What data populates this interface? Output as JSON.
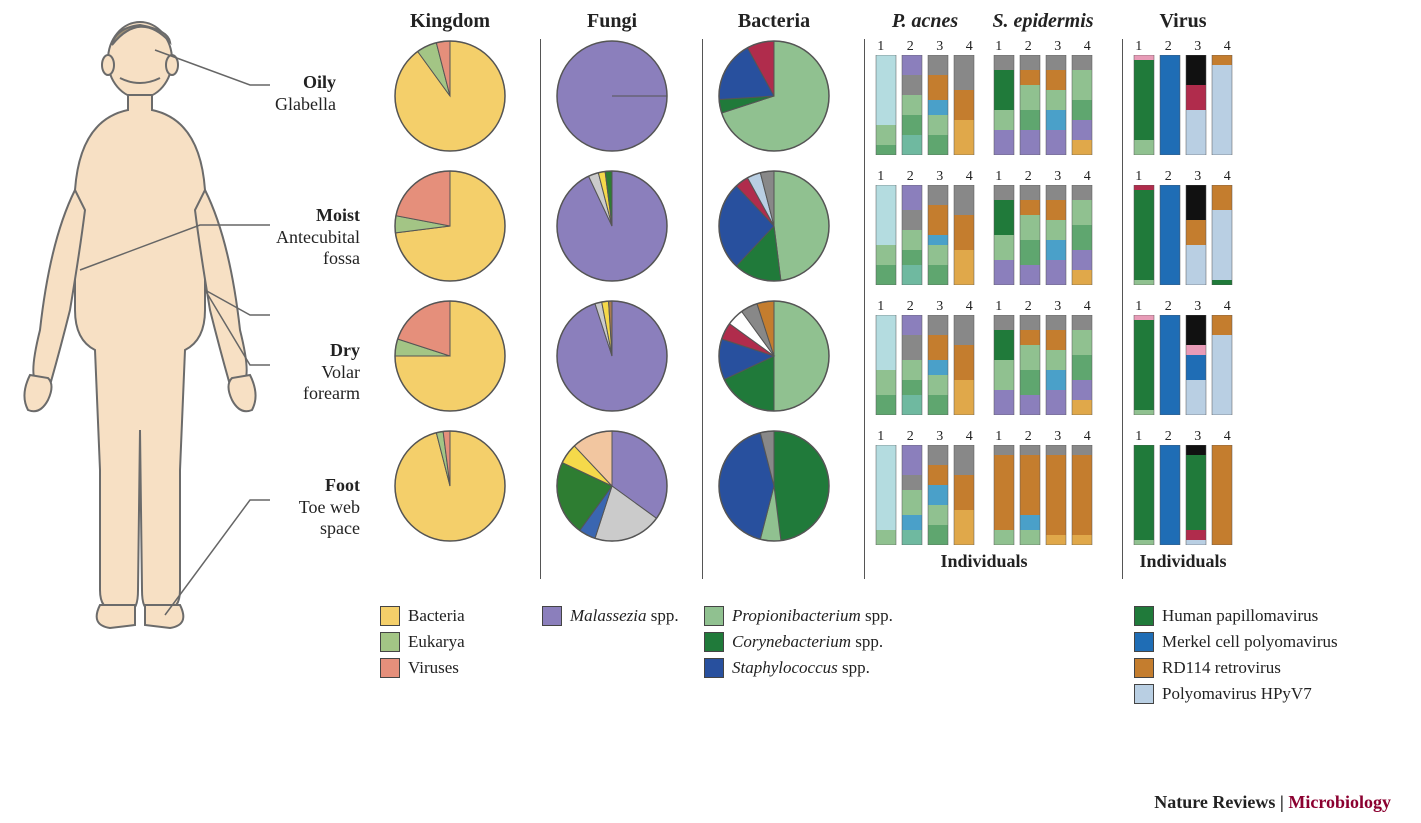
{
  "headers": {
    "kingdom": "Kingdom",
    "fungi": "Fungi",
    "bacteria": "Bacteria",
    "pacnes": "P. acnes",
    "sepi": "S. epidermis",
    "virus": "Virus"
  },
  "sites": [
    {
      "bold": "Oily",
      "sub": "Glabella"
    },
    {
      "bold": "Moist",
      "sub": "Antecubital fossa"
    },
    {
      "bold": "Dry",
      "sub": "Volar forearm"
    },
    {
      "bold": "Foot",
      "sub": "Toe web space"
    }
  ],
  "individuals_label": "Individuals",
  "credit_a": "Nature Reviews",
  "credit_sep": " | ",
  "credit_b": "Microbiology",
  "pies": {
    "kingdom": [
      {
        "slices": [
          {
            "v": 90,
            "c": "#f4cf6a"
          },
          {
            "v": 6,
            "c": "#a3c585"
          },
          {
            "v": 4,
            "c": "#e58f7b"
          }
        ]
      },
      {
        "slices": [
          {
            "v": 73,
            "c": "#f4cf6a"
          },
          {
            "v": 5,
            "c": "#a3c585"
          },
          {
            "v": 22,
            "c": "#e58f7b"
          }
        ]
      },
      {
        "slices": [
          {
            "v": 75,
            "c": "#f4cf6a"
          },
          {
            "v": 5,
            "c": "#a3c585"
          },
          {
            "v": 20,
            "c": "#e58f7b"
          }
        ]
      },
      {
        "slices": [
          {
            "v": 96,
            "c": "#f4cf6a"
          },
          {
            "v": 2,
            "c": "#a3c585"
          },
          {
            "v": 2,
            "c": "#e58f7b"
          }
        ]
      }
    ],
    "fungi": [
      {
        "slices": [
          {
            "v": 100,
            "c": "#8b7fbc"
          }
        ]
      },
      {
        "slices": [
          {
            "v": 93,
            "c": "#8b7fbc"
          },
          {
            "v": 3,
            "c": "#cbcbcb"
          },
          {
            "v": 2,
            "c": "#f5d94a"
          },
          {
            "v": 2,
            "c": "#2e7d32"
          }
        ]
      },
      {
        "slices": [
          {
            "v": 95,
            "c": "#8b7fbc"
          },
          {
            "v": 2,
            "c": "#cbcbcb"
          },
          {
            "v": 2,
            "c": "#f5d94a"
          },
          {
            "v": 1,
            "c": "#a97c50"
          }
        ]
      },
      {
        "slices": [
          {
            "v": 35,
            "c": "#8b7fbc"
          },
          {
            "v": 20,
            "c": "#cbcbcb"
          },
          {
            "v": 5,
            "c": "#3a66b1"
          },
          {
            "v": 22,
            "c": "#2e7d32"
          },
          {
            "v": 6,
            "c": "#f5d94a"
          },
          {
            "v": 12,
            "c": "#f2c6a0"
          }
        ]
      }
    ],
    "bacteria": [
      {
        "slices": [
          {
            "v": 70,
            "c": "#90c190"
          },
          {
            "v": 4,
            "c": "#207a3a"
          },
          {
            "v": 18,
            "c": "#28509e"
          },
          {
            "v": 8,
            "c": "#b02c4c"
          }
        ]
      },
      {
        "slices": [
          {
            "v": 48,
            "c": "#90c190"
          },
          {
            "v": 14,
            "c": "#207a3a"
          },
          {
            "v": 26,
            "c": "#28509e"
          },
          {
            "v": 4,
            "c": "#b02c4c"
          },
          {
            "v": 4,
            "c": "#b9cfe3"
          },
          {
            "v": 4,
            "c": "#888888"
          }
        ]
      },
      {
        "slices": [
          {
            "v": 50,
            "c": "#90c190"
          },
          {
            "v": 18,
            "c": "#207a3a"
          },
          {
            "v": 12,
            "c": "#28509e"
          },
          {
            "v": 5,
            "c": "#b02c4c"
          },
          {
            "v": 5,
            "c": "#ffffff"
          },
          {
            "v": 5,
            "c": "#888888"
          },
          {
            "v": 5,
            "c": "#c47d2e"
          }
        ]
      },
      {
        "slices": [
          {
            "v": 48,
            "c": "#207a3a"
          },
          {
            "v": 6,
            "c": "#90c190"
          },
          {
            "v": 42,
            "c": "#28509e"
          },
          {
            "v": 4,
            "c": "#888888"
          }
        ]
      }
    ]
  },
  "bars": {
    "pacnes": [
      [
        [
          {
            "v": 70,
            "c": "#b4dce0"
          },
          {
            "v": 20,
            "c": "#90c190"
          },
          {
            "v": 10,
            "c": "#5fa66f"
          }
        ],
        [
          {
            "v": 20,
            "c": "#8b7fbc"
          },
          {
            "v": 20,
            "c": "#888888"
          },
          {
            "v": 20,
            "c": "#90c190"
          },
          {
            "v": 20,
            "c": "#5fa66f"
          },
          {
            "v": 20,
            "c": "#6fb9a0"
          }
        ],
        [
          {
            "v": 20,
            "c": "#888888"
          },
          {
            "v": 25,
            "c": "#c47d2e"
          },
          {
            "v": 15,
            "c": "#4aa0c9"
          },
          {
            "v": 20,
            "c": "#90c190"
          },
          {
            "v": 20,
            "c": "#5fa66f"
          }
        ],
        [
          {
            "v": 35,
            "c": "#888888"
          },
          {
            "v": 30,
            "c": "#c47d2e"
          },
          {
            "v": 35,
            "c": "#e0a84a"
          }
        ]
      ],
      [
        [
          {
            "v": 60,
            "c": "#b4dce0"
          },
          {
            "v": 20,
            "c": "#90c190"
          },
          {
            "v": 20,
            "c": "#5fa66f"
          }
        ],
        [
          {
            "v": 25,
            "c": "#8b7fbc"
          },
          {
            "v": 20,
            "c": "#888888"
          },
          {
            "v": 20,
            "c": "#90c190"
          },
          {
            "v": 15,
            "c": "#5fa66f"
          },
          {
            "v": 20,
            "c": "#6fb9a0"
          }
        ],
        [
          {
            "v": 20,
            "c": "#888888"
          },
          {
            "v": 30,
            "c": "#c47d2e"
          },
          {
            "v": 10,
            "c": "#4aa0c9"
          },
          {
            "v": 20,
            "c": "#90c190"
          },
          {
            "v": 20,
            "c": "#5fa66f"
          }
        ],
        [
          {
            "v": 30,
            "c": "#888888"
          },
          {
            "v": 35,
            "c": "#c47d2e"
          },
          {
            "v": 35,
            "c": "#e0a84a"
          }
        ]
      ],
      [
        [
          {
            "v": 55,
            "c": "#b4dce0"
          },
          {
            "v": 25,
            "c": "#90c190"
          },
          {
            "v": 20,
            "c": "#5fa66f"
          }
        ],
        [
          {
            "v": 20,
            "c": "#8b7fbc"
          },
          {
            "v": 25,
            "c": "#888888"
          },
          {
            "v": 20,
            "c": "#90c190"
          },
          {
            "v": 15,
            "c": "#5fa66f"
          },
          {
            "v": 20,
            "c": "#6fb9a0"
          }
        ],
        [
          {
            "v": 20,
            "c": "#888888"
          },
          {
            "v": 25,
            "c": "#c47d2e"
          },
          {
            "v": 15,
            "c": "#4aa0c9"
          },
          {
            "v": 20,
            "c": "#90c190"
          },
          {
            "v": 20,
            "c": "#5fa66f"
          }
        ],
        [
          {
            "v": 30,
            "c": "#888888"
          },
          {
            "v": 35,
            "c": "#c47d2e"
          },
          {
            "v": 35,
            "c": "#e0a84a"
          }
        ]
      ],
      [
        [
          {
            "v": 85,
            "c": "#b4dce0"
          },
          {
            "v": 15,
            "c": "#90c190"
          }
        ],
        [
          {
            "v": 30,
            "c": "#8b7fbc"
          },
          {
            "v": 15,
            "c": "#888888"
          },
          {
            "v": 25,
            "c": "#90c190"
          },
          {
            "v": 15,
            "c": "#4aa0c9"
          },
          {
            "v": 15,
            "c": "#6fb9a0"
          }
        ],
        [
          {
            "v": 20,
            "c": "#888888"
          },
          {
            "v": 20,
            "c": "#c47d2e"
          },
          {
            "v": 20,
            "c": "#4aa0c9"
          },
          {
            "v": 20,
            "c": "#90c190"
          },
          {
            "v": 20,
            "c": "#5fa66f"
          }
        ],
        [
          {
            "v": 30,
            "c": "#888888"
          },
          {
            "v": 35,
            "c": "#c47d2e"
          },
          {
            "v": 35,
            "c": "#e0a84a"
          }
        ]
      ]
    ],
    "sepi": [
      [
        [
          {
            "v": 15,
            "c": "#888888"
          },
          {
            "v": 40,
            "c": "#207a3a"
          },
          {
            "v": 20,
            "c": "#90c190"
          },
          {
            "v": 25,
            "c": "#8b7fbc"
          }
        ],
        [
          {
            "v": 15,
            "c": "#888888"
          },
          {
            "v": 15,
            "c": "#c47d2e"
          },
          {
            "v": 25,
            "c": "#90c190"
          },
          {
            "v": 20,
            "c": "#5fa66f"
          },
          {
            "v": 25,
            "c": "#8b7fbc"
          }
        ],
        [
          {
            "v": 15,
            "c": "#888888"
          },
          {
            "v": 20,
            "c": "#c47d2e"
          },
          {
            "v": 20,
            "c": "#90c190"
          },
          {
            "v": 20,
            "c": "#4aa0c9"
          },
          {
            "v": 25,
            "c": "#8b7fbc"
          }
        ],
        [
          {
            "v": 15,
            "c": "#888888"
          },
          {
            "v": 30,
            "c": "#90c190"
          },
          {
            "v": 20,
            "c": "#5fa66f"
          },
          {
            "v": 20,
            "c": "#8b7fbc"
          },
          {
            "v": 15,
            "c": "#e0a84a"
          }
        ]
      ],
      [
        [
          {
            "v": 15,
            "c": "#888888"
          },
          {
            "v": 35,
            "c": "#207a3a"
          },
          {
            "v": 25,
            "c": "#90c190"
          },
          {
            "v": 25,
            "c": "#8b7fbc"
          }
        ],
        [
          {
            "v": 15,
            "c": "#888888"
          },
          {
            "v": 15,
            "c": "#c47d2e"
          },
          {
            "v": 25,
            "c": "#90c190"
          },
          {
            "v": 25,
            "c": "#5fa66f"
          },
          {
            "v": 20,
            "c": "#8b7fbc"
          }
        ],
        [
          {
            "v": 15,
            "c": "#888888"
          },
          {
            "v": 20,
            "c": "#c47d2e"
          },
          {
            "v": 20,
            "c": "#90c190"
          },
          {
            "v": 20,
            "c": "#4aa0c9"
          },
          {
            "v": 25,
            "c": "#8b7fbc"
          }
        ],
        [
          {
            "v": 15,
            "c": "#888888"
          },
          {
            "v": 25,
            "c": "#90c190"
          },
          {
            "v": 25,
            "c": "#5fa66f"
          },
          {
            "v": 20,
            "c": "#8b7fbc"
          },
          {
            "v": 15,
            "c": "#e0a84a"
          }
        ]
      ],
      [
        [
          {
            "v": 15,
            "c": "#888888"
          },
          {
            "v": 30,
            "c": "#207a3a"
          },
          {
            "v": 30,
            "c": "#90c190"
          },
          {
            "v": 25,
            "c": "#8b7fbc"
          }
        ],
        [
          {
            "v": 15,
            "c": "#888888"
          },
          {
            "v": 15,
            "c": "#c47d2e"
          },
          {
            "v": 25,
            "c": "#90c190"
          },
          {
            "v": 25,
            "c": "#5fa66f"
          },
          {
            "v": 20,
            "c": "#8b7fbc"
          }
        ],
        [
          {
            "v": 15,
            "c": "#888888"
          },
          {
            "v": 20,
            "c": "#c47d2e"
          },
          {
            "v": 20,
            "c": "#90c190"
          },
          {
            "v": 20,
            "c": "#4aa0c9"
          },
          {
            "v": 25,
            "c": "#8b7fbc"
          }
        ],
        [
          {
            "v": 15,
            "c": "#888888"
          },
          {
            "v": 25,
            "c": "#90c190"
          },
          {
            "v": 25,
            "c": "#5fa66f"
          },
          {
            "v": 20,
            "c": "#8b7fbc"
          },
          {
            "v": 15,
            "c": "#e0a84a"
          }
        ]
      ],
      [
        [
          {
            "v": 10,
            "c": "#888888"
          },
          {
            "v": 75,
            "c": "#c47d2e"
          },
          {
            "v": 15,
            "c": "#90c190"
          }
        ],
        [
          {
            "v": 10,
            "c": "#888888"
          },
          {
            "v": 60,
            "c": "#c47d2e"
          },
          {
            "v": 15,
            "c": "#4aa0c9"
          },
          {
            "v": 15,
            "c": "#90c190"
          }
        ],
        [
          {
            "v": 10,
            "c": "#888888"
          },
          {
            "v": 80,
            "c": "#c47d2e"
          },
          {
            "v": 10,
            "c": "#e0a84a"
          }
        ],
        [
          {
            "v": 10,
            "c": "#888888"
          },
          {
            "v": 80,
            "c": "#c47d2e"
          },
          {
            "v": 10,
            "c": "#e0a84a"
          }
        ]
      ]
    ],
    "virus": [
      [
        [
          {
            "v": 5,
            "c": "#e89bb7"
          },
          {
            "v": 80,
            "c": "#207a3a"
          },
          {
            "v": 15,
            "c": "#90c190"
          }
        ],
        [
          {
            "v": 100,
            "c": "#1f6db5"
          }
        ],
        [
          {
            "v": 30,
            "c": "#111111"
          },
          {
            "v": 25,
            "c": "#b02c4c"
          },
          {
            "v": 45,
            "c": "#b9cfe3"
          }
        ],
        [
          {
            "v": 10,
            "c": "#c47d2e"
          },
          {
            "v": 90,
            "c": "#b9cfe3"
          }
        ]
      ],
      [
        [
          {
            "v": 5,
            "c": "#b02c4c"
          },
          {
            "v": 90,
            "c": "#207a3a"
          },
          {
            "v": 5,
            "c": "#90c190"
          }
        ],
        [
          {
            "v": 100,
            "c": "#1f6db5"
          }
        ],
        [
          {
            "v": 35,
            "c": "#111111"
          },
          {
            "v": 25,
            "c": "#c47d2e"
          },
          {
            "v": 40,
            "c": "#b9cfe3"
          }
        ],
        [
          {
            "v": 25,
            "c": "#c47d2e"
          },
          {
            "v": 70,
            "c": "#b9cfe3"
          },
          {
            "v": 5,
            "c": "#207a3a"
          }
        ]
      ],
      [
        [
          {
            "v": 5,
            "c": "#e89bb7"
          },
          {
            "v": 90,
            "c": "#207a3a"
          },
          {
            "v": 5,
            "c": "#90c190"
          }
        ],
        [
          {
            "v": 100,
            "c": "#1f6db5"
          }
        ],
        [
          {
            "v": 30,
            "c": "#111111"
          },
          {
            "v": 10,
            "c": "#e89bb7"
          },
          {
            "v": 25,
            "c": "#1f6db5"
          },
          {
            "v": 35,
            "c": "#b9cfe3"
          }
        ],
        [
          {
            "v": 20,
            "c": "#c47d2e"
          },
          {
            "v": 80,
            "c": "#b9cfe3"
          }
        ]
      ],
      [
        [
          {
            "v": 95,
            "c": "#207a3a"
          },
          {
            "v": 5,
            "c": "#90c190"
          }
        ],
        [
          {
            "v": 100,
            "c": "#1f6db5"
          }
        ],
        [
          {
            "v": 10,
            "c": "#111111"
          },
          {
            "v": 75,
            "c": "#207a3a"
          },
          {
            "v": 10,
            "c": "#b02c4c"
          },
          {
            "v": 5,
            "c": "#b9cfe3"
          }
        ],
        [
          {
            "v": 5,
            "c": "#c47d2e"
          },
          {
            "v": 95,
            "c": "#c47d2e"
          }
        ]
      ]
    ]
  },
  "legends": {
    "kingdom": [
      {
        "c": "#f4cf6a",
        "t": "Bacteria"
      },
      {
        "c": "#a3c585",
        "t": "Eukarya"
      },
      {
        "c": "#e58f7b",
        "t": "Viruses"
      }
    ],
    "fungi": [
      {
        "c": "#8b7fbc",
        "t": "Malassezia spp.",
        "italic": true
      }
    ],
    "bacteria": [
      {
        "c": "#90c190",
        "t": "Propionibacterium spp.",
        "italic_partial": "Propionibacterium"
      },
      {
        "c": "#207a3a",
        "t": "Corynebacterium spp.",
        "italic_partial": "Corynebacterium"
      },
      {
        "c": "#28509e",
        "t": "Staphylococcus spp.",
        "italic_partial": "Staphylococcus"
      }
    ],
    "virus": [
      {
        "c": "#207a3a",
        "t": "Human papillomavirus"
      },
      {
        "c": "#1f6db5",
        "t": "Merkel cell polyomavirus"
      },
      {
        "c": "#c47d2e",
        "t": "RD114 retrovirus"
      },
      {
        "c": "#b9cfe3",
        "t": "Polyomavirus HPyV7"
      }
    ]
  },
  "body_figure": {
    "skin": "#f7e0c4",
    "outline": "#6b6b6b",
    "hair": "#9e8f74"
  },
  "column_widths": {
    "pie": 140,
    "bars": 118,
    "virus_bars": 118
  }
}
